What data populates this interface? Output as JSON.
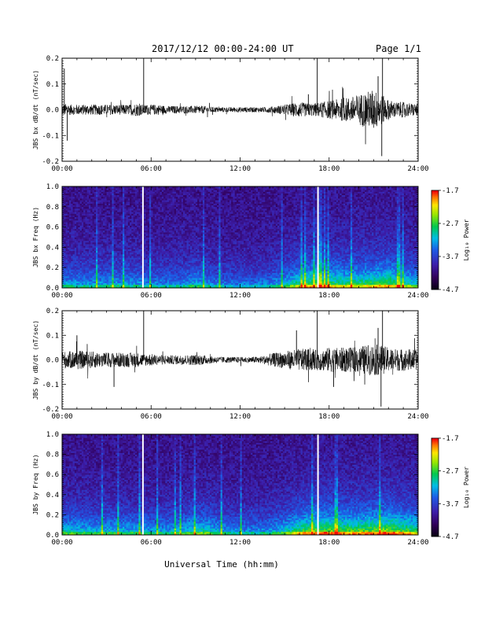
{
  "header": {
    "title": "2017/12/12  00:00-24:00 UT",
    "page": "Page 1/1"
  },
  "footer": {
    "xlabel": "Universal Time (hh:mm)"
  },
  "chart_data": [
    {
      "type": "line",
      "ylabel": "JBS bx dB/dt (nT/sec)",
      "xlim": [
        0,
        24
      ],
      "ylim": [
        -0.2,
        0.2
      ],
      "yticks": [
        "-0.2",
        "-0.1",
        "0.0",
        "0.1",
        "0.2"
      ],
      "xticks": [
        "00:00",
        "06:00",
        "12:00",
        "18:00",
        "24:00"
      ],
      "series": [
        {
          "x_hours": [
            0,
            0.5,
            1,
            1.5,
            2,
            2.5,
            3,
            3.5,
            4,
            4.5,
            5,
            5.5,
            6,
            6.5,
            7,
            7.5,
            8,
            8.5,
            9,
            9.5,
            10,
            10.5,
            11,
            11.5,
            12,
            12.5,
            13,
            13.5,
            14,
            14.5,
            15,
            15.5,
            16,
            16.5,
            17,
            17.5,
            18,
            18.5,
            19,
            19.5,
            20,
            20.5,
            21,
            21.5,
            22,
            22.5,
            23,
            23.5,
            24
          ],
          "envelope": [
            0.025,
            0.02,
            0.02,
            0.02,
            0.02,
            0.02,
            0.02,
            0.02,
            0.02,
            0.02,
            0.025,
            0.02,
            0.02,
            0.02,
            0.015,
            0.015,
            0.015,
            0.015,
            0.015,
            0.015,
            0.012,
            0.01,
            0.01,
            0.01,
            0.01,
            0.01,
            0.01,
            0.01,
            0.012,
            0.015,
            0.02,
            0.025,
            0.03,
            0.025,
            0.025,
            0.03,
            0.035,
            0.04,
            0.045,
            0.05,
            0.06,
            0.07,
            0.08,
            0.06,
            0.04,
            0.03,
            0.03,
            0.025,
            0.025
          ]
        }
      ],
      "spikes": [
        {
          "x": 0.15,
          "y": 0.16
        },
        {
          "x": 0.35,
          "y": -0.12
        },
        {
          "x": 5.5,
          "y": 0.2
        },
        {
          "x": 17.2,
          "y": 0.2
        },
        {
          "x": 21.6,
          "y": 0.2
        },
        {
          "x": 21.55,
          "y": -0.18
        },
        {
          "x": 21.3,
          "y": 0.13
        },
        {
          "x": 16.6,
          "y": 0.06
        }
      ]
    },
    {
      "type": "heatmap",
      "ylabel": "JBS bx Freq (Hz)",
      "xlim": [
        0,
        24
      ],
      "ylim": [
        0,
        1
      ],
      "yticks": [
        "0.0",
        "0.2",
        "0.4",
        "0.6",
        "0.8",
        "1.0"
      ],
      "xticks": [
        "00:00",
        "06:00",
        "12:00",
        "18:00",
        "24:00"
      ],
      "colorbar": {
        "label": "Log₁₀ Power",
        "ticks": [
          "-1.7",
          "-2.7",
          "-3.7",
          "-4.7"
        ],
        "range": [
          -4.7,
          -1.7
        ]
      },
      "data_gaps_hours": [
        5.45,
        17.25
      ],
      "activity_by_hour": [
        0.5,
        0.5,
        0.5,
        0.5,
        0.5,
        0.5,
        0.45,
        0.45,
        0.45,
        0.55,
        0.45,
        0.4,
        0.4,
        0.4,
        0.45,
        0.55,
        0.75,
        0.85,
        0.8,
        0.75,
        0.75,
        0.8,
        0.85,
        0.7,
        0.6
      ]
    },
    {
      "type": "line",
      "ylabel": "JBS by dB/dt (nT/sec)",
      "xlim": [
        0,
        24
      ],
      "ylim": [
        -0.2,
        0.2
      ],
      "yticks": [
        "-0.2",
        "-0.1",
        "0.0",
        "0.1",
        "0.2"
      ],
      "xticks": [
        "00:00",
        "06:00",
        "12:00",
        "18:00",
        "24:00"
      ],
      "series": [
        {
          "x_hours": [
            0,
            0.5,
            1,
            1.5,
            2,
            2.5,
            3,
            3.5,
            4,
            4.5,
            5,
            5.5,
            6,
            6.5,
            7,
            7.5,
            8,
            8.5,
            9,
            9.5,
            10,
            10.5,
            11,
            11.5,
            12,
            12.5,
            13,
            13.5,
            14,
            14.5,
            15,
            15.5,
            16,
            16.5,
            17,
            17.5,
            18,
            18.5,
            19,
            19.5,
            20,
            20.5,
            21,
            21.5,
            22,
            22.5,
            23,
            23.5,
            24
          ],
          "envelope": [
            0.035,
            0.035,
            0.04,
            0.035,
            0.035,
            0.03,
            0.03,
            0.03,
            0.03,
            0.03,
            0.03,
            0.025,
            0.025,
            0.02,
            0.02,
            0.018,
            0.02,
            0.02,
            0.022,
            0.02,
            0.015,
            0.013,
            0.012,
            0.012,
            0.012,
            0.012,
            0.013,
            0.015,
            0.025,
            0.03,
            0.035,
            0.04,
            0.045,
            0.045,
            0.04,
            0.045,
            0.05,
            0.05,
            0.05,
            0.05,
            0.055,
            0.06,
            0.065,
            0.06,
            0.05,
            0.045,
            0.045,
            0.045,
            0.04
          ]
        }
      ],
      "spikes": [
        {
          "x": 1.0,
          "y": 0.1
        },
        {
          "x": 5.5,
          "y": 0.2
        },
        {
          "x": 3.5,
          "y": -0.11
        },
        {
          "x": 17.2,
          "y": 0.2
        },
        {
          "x": 21.6,
          "y": 0.2
        },
        {
          "x": 21.5,
          "y": -0.19
        },
        {
          "x": 21.3,
          "y": 0.13
        },
        {
          "x": 15.8,
          "y": 0.12
        },
        {
          "x": 18.3,
          "y": -0.11
        }
      ]
    },
    {
      "type": "heatmap",
      "ylabel": "JBS by Freq (Hz)",
      "xlim": [
        0,
        24
      ],
      "ylim": [
        0,
        1
      ],
      "yticks": [
        "0.0",
        "0.2",
        "0.4",
        "0.6",
        "0.8",
        "1.0"
      ],
      "xticks": [
        "00:00",
        "06:00",
        "12:00",
        "18:00",
        "24:00"
      ],
      "colorbar": {
        "label": "Log₁₀ Power",
        "ticks": [
          "-1.7",
          "-2.7",
          "-3.7",
          "-4.7"
        ],
        "range": [
          -4.7,
          -1.7
        ]
      },
      "data_gaps_hours": [
        5.45,
        17.25
      ],
      "activity_by_hour": [
        0.6,
        0.6,
        0.55,
        0.55,
        0.55,
        0.55,
        0.5,
        0.5,
        0.55,
        0.65,
        0.6,
        0.5,
        0.45,
        0.45,
        0.5,
        0.6,
        0.8,
        0.9,
        0.9,
        0.85,
        0.85,
        0.9,
        0.95,
        0.85,
        0.75
      ]
    }
  ]
}
